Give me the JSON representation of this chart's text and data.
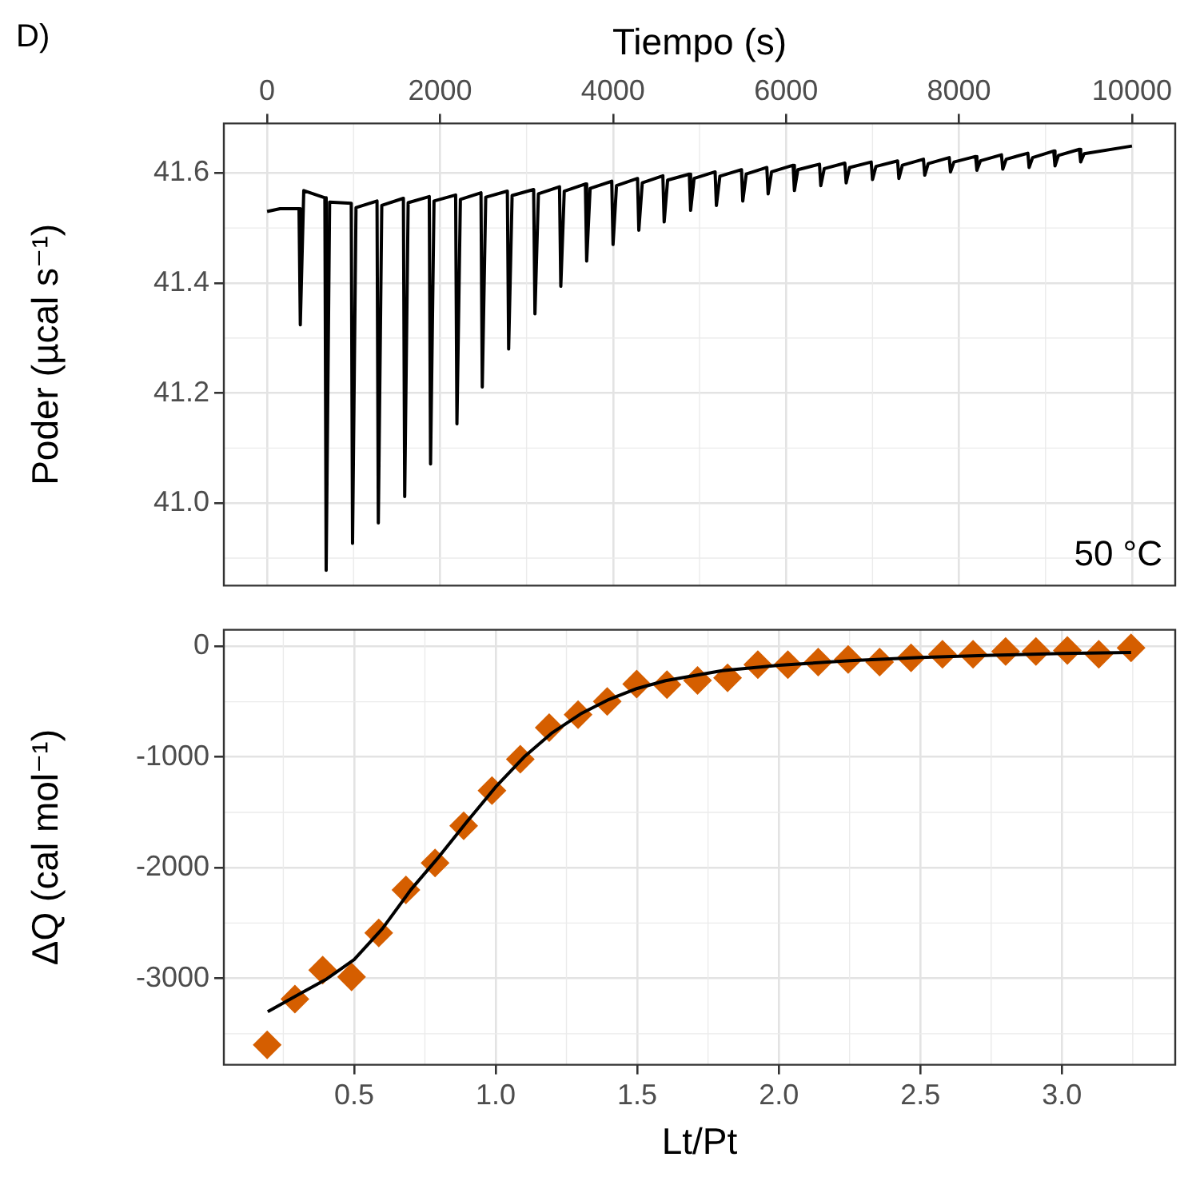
{
  "chart_data": [
    {
      "type": "line",
      "title": "D)",
      "xlabel": "Tiempo (s)",
      "ylabel": "Poder (µcal s⁻¹)",
      "annotations": [
        "50 °C"
      ],
      "xlim": [
        -500,
        10500
      ],
      "ylim": [
        40.85,
        41.69
      ],
      "xticks": [
        0,
        2000,
        4000,
        6000,
        8000,
        10000
      ],
      "yticks": [
        {
          "value": 41,
          "label": "41.0"
        },
        41.2,
        41.4,
        41.6
      ],
      "grid": true,
      "legend": false,
      "series": [
        {
          "color": "#000000",
          "marker": "none",
          "x": [
            0,
            150,
            369,
            384,
            424,
            668,
            683,
            723,
            973,
            988,
            1028,
            1271,
            1286,
            1326,
            1576,
            1591,
            1631,
            1875,
            1890,
            1930,
            2180,
            2195,
            2235,
            2473,
            2488,
            2528,
            2778,
            2793,
            2833,
            3082,
            3097,
            3137,
            3381,
            3396,
            3436,
            3680,
            3695,
            3735,
            3985,
            4000,
            4040,
            4283,
            4298,
            4338,
            4576,
            4591,
            4631,
            4882,
            4897,
            4937,
            5180,
            5195,
            5235,
            5485,
            5500,
            5540,
            5778,
            5793,
            5833,
            6082,
            6097,
            6137,
            6387,
            6402,
            6442,
            6680,
            6695,
            6735,
            6985,
            7000,
            7040,
            7290,
            7305,
            7345,
            7589,
            7604,
            7644,
            7887,
            7902,
            7942,
            8192,
            8207,
            8247,
            8491,
            8506,
            8546,
            8796,
            8811,
            8851,
            9095,
            9110,
            9150,
            9392,
            9407,
            9447,
            10000
          ],
          "values": [
            41.53,
            41.535,
            41.535,
            41.324,
            41.568,
            41.555,
            40.878,
            41.547,
            41.545,
            40.927,
            41.537,
            41.549,
            40.964,
            41.541,
            41.554,
            41.012,
            41.546,
            41.557,
            41.071,
            41.549,
            41.56,
            41.144,
            41.552,
            41.564,
            41.211,
            41.556,
            41.567,
            41.28,
            41.559,
            41.57,
            41.344,
            41.562,
            41.575,
            41.394,
            41.567,
            41.58,
            41.44,
            41.572,
            41.585,
            41.47,
            41.577,
            41.59,
            41.496,
            41.582,
            41.595,
            41.511,
            41.587,
            41.598,
            41.532,
            41.59,
            41.602,
            41.541,
            41.594,
            41.606,
            41.549,
            41.598,
            41.61,
            41.562,
            41.602,
            41.614,
            41.568,
            41.606,
            41.616,
            41.577,
            41.608,
            41.618,
            41.582,
            41.61,
            41.62,
            41.588,
            41.612,
            41.622,
            41.59,
            41.614,
            41.625,
            41.596,
            41.617,
            41.628,
            41.602,
            41.62,
            41.63,
            41.605,
            41.622,
            41.633,
            41.607,
            41.625,
            41.636,
            41.61,
            41.628,
            41.64,
            41.613,
            41.632,
            41.643,
            41.62,
            41.635,
            41.649
          ]
        }
      ]
    },
    {
      "type": "scatter",
      "xlabel": "Lt/Pt",
      "ylabel": "ΔQ (cal mol⁻¹)",
      "xlim": [
        0.04,
        3.4
      ],
      "ylim": [
        -3780,
        150
      ],
      "xticks": [
        0.5,
        {
          "value": 1,
          "label": "1.0"
        },
        1.5,
        {
          "value": 2,
          "label": "2.0"
        },
        2.5,
        {
          "value": 3,
          "label": "3.0"
        }
      ],
      "yticks": [
        -3000,
        -2000,
        -1000,
        0
      ],
      "grid": true,
      "legend": false,
      "series": [
        {
          "color": "#d55e00",
          "marker": "diamond",
          "x": [
            0.193,
            0.291,
            0.389,
            0.491,
            0.587,
            0.683,
            0.786,
            0.887,
            0.987,
            1.087,
            1.189,
            1.291,
            1.394,
            1.498,
            1.605,
            1.713,
            1.819,
            1.926,
            2.032,
            2.139,
            2.245,
            2.356,
            2.467,
            2.578,
            2.686,
            2.801,
            2.908,
            3.019,
            3.13,
            3.244
          ],
          "values": [
            -3600,
            -3186,
            -2925,
            -2987,
            -2589,
            -2200,
            -1957,
            -1621,
            -1303,
            -1019,
            -734,
            -616,
            -498,
            -341,
            -346,
            -308,
            -284,
            -165,
            -165,
            -142,
            -118,
            -142,
            -104,
            -71,
            -71,
            -47,
            -47,
            -37,
            -71,
            -14
          ]
        },
        {
          "type": "line",
          "color": "#000000",
          "marker": "none",
          "x": [
            0.195,
            0.3,
            0.4,
            0.5,
            0.6,
            0.7,
            0.8,
            0.9,
            1.0,
            1.1,
            1.2,
            1.3,
            1.4,
            1.5,
            1.6,
            1.8,
            2.0,
            2.25,
            2.5,
            2.75,
            3.0,
            3.244
          ],
          "values": [
            -3300,
            -3150,
            -3010,
            -2830,
            -2550,
            -2200,
            -1900,
            -1580,
            -1270,
            -1000,
            -780,
            -610,
            -480,
            -380,
            -310,
            -220,
            -170,
            -130,
            -100,
            -80,
            -65,
            -55
          ]
        }
      ]
    }
  ]
}
